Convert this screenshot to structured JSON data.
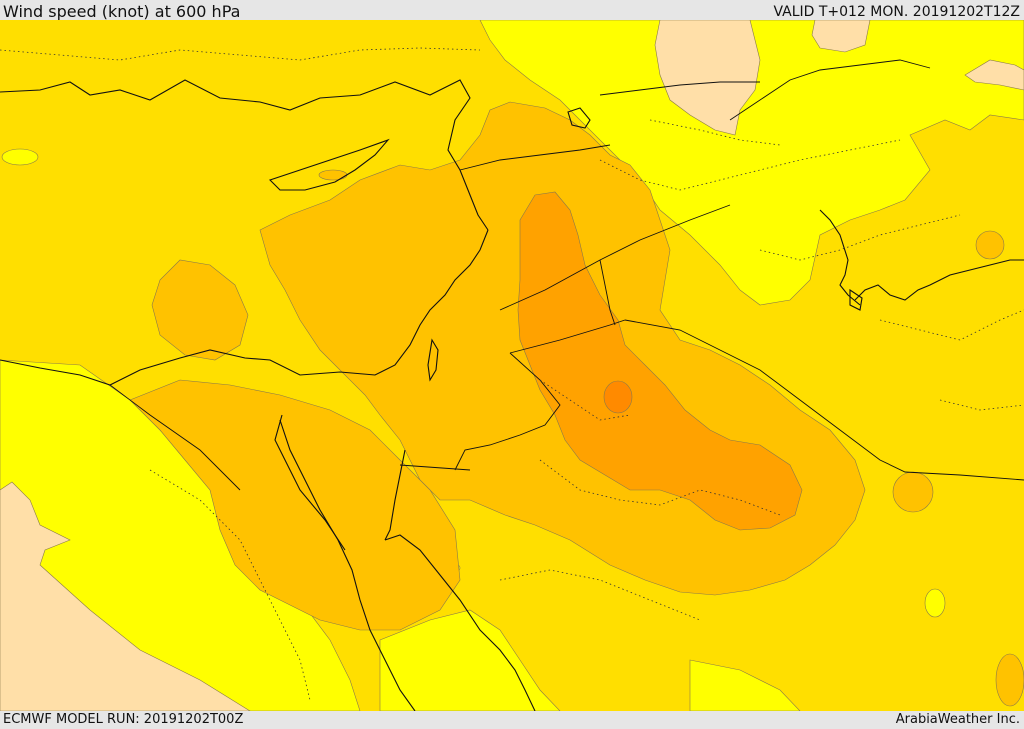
{
  "header": {
    "title": "Wind speed (knot) at 600 hPa",
    "valid": "VALID T+012 MON. 20191202T12Z"
  },
  "footer": {
    "model_run": "ECMWF MODEL RUN: 20191202T00Z",
    "credit": "ArabiaWeather Inc."
  },
  "colors": {
    "background_light": "#ffff00",
    "band_1": "#ffdf00",
    "band_2": "#ffc200",
    "band_3": "#ffa200",
    "band_4": "#ff8a00",
    "calm": "#ffdfa8"
  }
}
